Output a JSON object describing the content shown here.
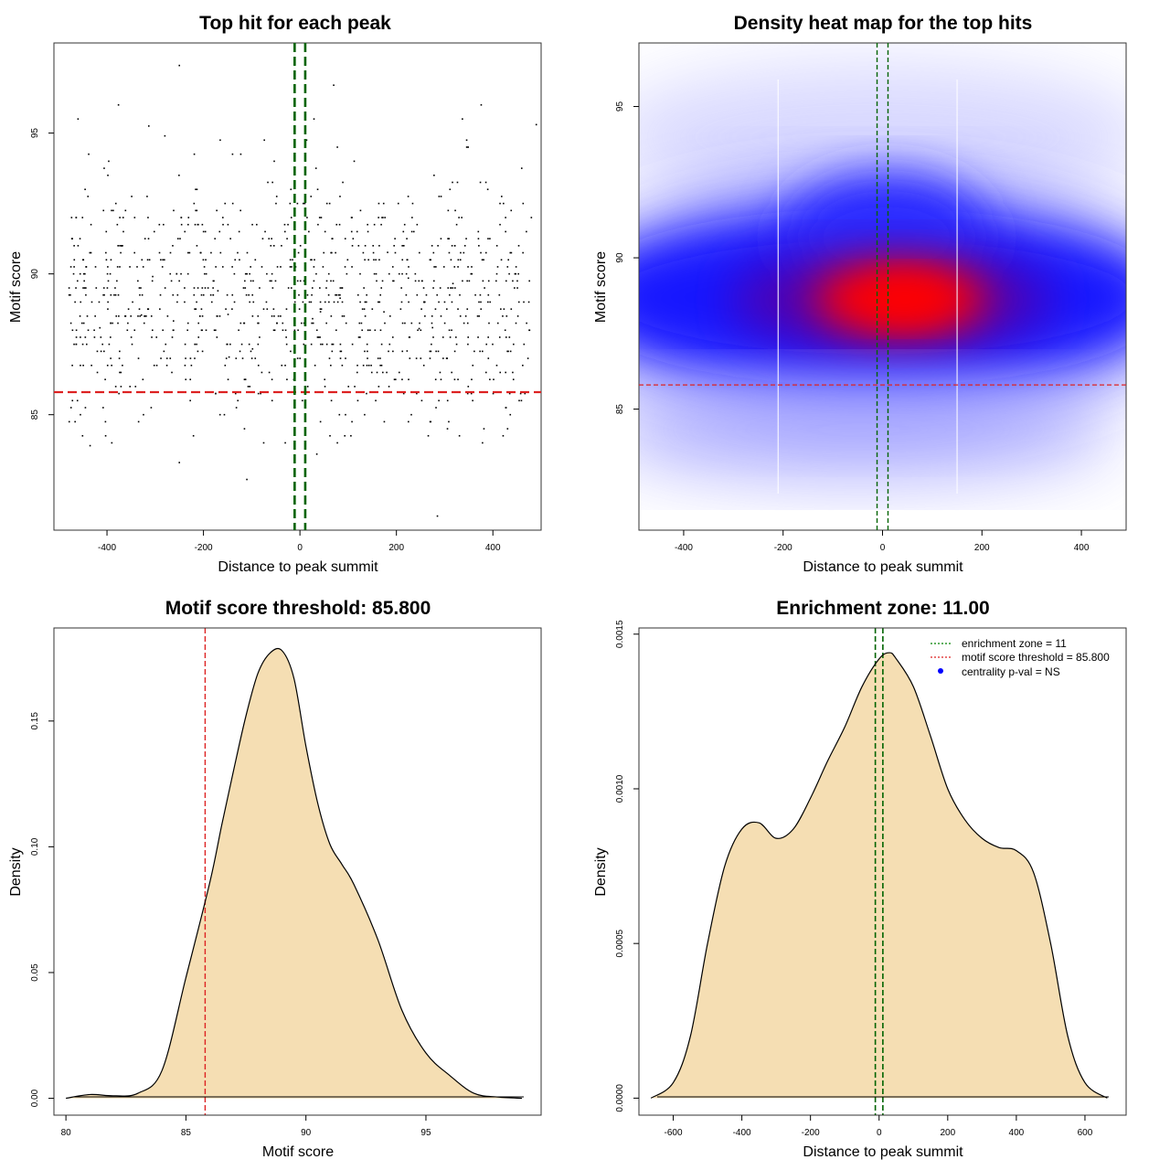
{
  "colors": {
    "threshold_red": "#dd2222",
    "zone_green": "#006400",
    "fill_wheat": "#f5deb3",
    "point": "#000000",
    "legend_blue": "#0000ff"
  },
  "chart_data": [
    {
      "type": "scatter",
      "title": "Top hit for each peak",
      "xlabel": "Distance to peak summit",
      "ylabel": "Motif score",
      "xlim": [
        -510,
        500
      ],
      "ylim": [
        80.9,
        98.2
      ],
      "xticks": [
        -400,
        -200,
        0,
        200,
        400
      ],
      "yticks": [
        85,
        90,
        95
      ],
      "xtick_labels": [
        "-400",
        "-200",
        "0",
        "200",
        "400"
      ],
      "ytick_labels": [
        "85",
        "90",
        "95"
      ],
      "hline": 85.8,
      "vlines": [
        -11,
        11
      ],
      "n_points": 1000,
      "x_range": [
        -480,
        480
      ],
      "y_center": 89.0,
      "y_spread": 2.3,
      "outliers": [
        {
          "x": -250,
          "y": 97.4
        },
        {
          "x": 70,
          "y": 96.7
        },
        {
          "x": -280,
          "y": 94.9
        },
        {
          "x": -115,
          "y": 84.5
        },
        {
          "x": -110,
          "y": 82.7
        },
        {
          "x": -250,
          "y": 83.3
        },
        {
          "x": 35,
          "y": 83.6
        },
        {
          "x": 285,
          "y": 81.4
        },
        {
          "x": 490,
          "y": 95.3
        },
        {
          "x": -435,
          "y": 83.9
        },
        {
          "x": -390,
          "y": 84.0
        },
        {
          "x": -460,
          "y": 95.5
        }
      ]
    },
    {
      "type": "heatmap",
      "title": "Density heat map for the top hits",
      "xlabel": "Distance to peak summit",
      "ylabel": "Motif score",
      "xlim": [
        -490,
        490
      ],
      "ylim": [
        81.0,
        97.1
      ],
      "xticks": [
        -400,
        -200,
        0,
        200,
        400
      ],
      "yticks": [
        85,
        90,
        95
      ],
      "xtick_labels": [
        "-400",
        "-200",
        "0",
        "200",
        "400"
      ],
      "ytick_labels": [
        "85",
        "90",
        "95"
      ],
      "hline": 85.8,
      "vlines": [
        -11,
        11
      ],
      "color_scale": [
        "#ffffff",
        "#0000ff",
        "#ff0000"
      ],
      "density_peak": {
        "x": 40,
        "y": 89.0
      },
      "white_gaps": [
        -210,
        150
      ]
    },
    {
      "type": "area",
      "title": "Motif score threshold: 85.800",
      "xlabel": "Motif score",
      "ylabel": "Density",
      "xlim": [
        79.5,
        99.8
      ],
      "ylim": [
        -0.0067,
        0.187
      ],
      "xticks": [
        80,
        85,
        90,
        95
      ],
      "yticks": [
        0,
        0.05,
        0.1,
        0.15
      ],
      "xtick_labels": [
        "80",
        "85",
        "90",
        "95"
      ],
      "ytick_labels": [
        "0.00",
        "0.05",
        "0.10",
        "0.15"
      ],
      "vline": 85.8,
      "x": [
        80.0,
        81.0,
        82.0,
        83.0,
        84.0,
        85.0,
        86.0,
        86.5,
        87.0,
        87.5,
        88.0,
        88.5,
        89.0,
        89.5,
        90.0,
        90.5,
        91.0,
        91.5,
        92.0,
        93.0,
        94.0,
        95.0,
        96.0,
        97.0,
        98.0,
        99.0
      ],
      "values": [
        0.0,
        0.0015,
        0.001,
        0.002,
        0.011,
        0.048,
        0.086,
        0.109,
        0.131,
        0.152,
        0.169,
        0.177,
        0.178,
        0.167,
        0.14,
        0.117,
        0.101,
        0.093,
        0.085,
        0.063,
        0.035,
        0.018,
        0.009,
        0.002,
        0.0005,
        0.0
      ]
    },
    {
      "type": "area",
      "title": "Enrichment zone: 11.00",
      "xlabel": "Distance to peak summit",
      "ylabel": "Density",
      "xlim": [
        -700,
        720
      ],
      "ylim": [
        -5.5e-05,
        0.00152
      ],
      "xticks": [
        -600,
        -400,
        -200,
        0,
        200,
        400,
        600
      ],
      "yticks": [
        0,
        0.0005,
        0.001,
        0.0015
      ],
      "xtick_labels": [
        "-600",
        "-400",
        "-200",
        "0",
        "200",
        "400",
        "600"
      ],
      "ytick_labels": [
        "0.0000",
        "0.0005",
        "0.0010",
        "0.0015"
      ],
      "vlines": [
        -11,
        11
      ],
      "x": [
        -665,
        -600,
        -550,
        -500,
        -450,
        -400,
        -350,
        -300,
        -250,
        -200,
        -150,
        -100,
        -50,
        0,
        30,
        50,
        100,
        150,
        200,
        250,
        300,
        350,
        400,
        450,
        500,
        550,
        600,
        665
      ],
      "values": [
        0.0,
        5e-05,
        0.0002,
        0.0005,
        0.00075,
        0.00087,
        0.00089,
        0.00084,
        0.00087,
        0.00097,
        0.00109,
        0.0012,
        0.00133,
        0.00142,
        0.00144,
        0.00142,
        0.00133,
        0.00117,
        0.001,
        0.0009,
        0.00084,
        0.00081,
        0.0008,
        0.00073,
        0.0005,
        0.0002,
        5e-05,
        0.0
      ],
      "legend": [
        {
          "label": "enrichment zone = 11",
          "style": "dotted-line",
          "color": "#008000"
        },
        {
          "label": "motif score threshold = 85.800",
          "style": "dotted-line",
          "color": "#dd2222"
        },
        {
          "label": "centrality p-val = NS",
          "style": "point",
          "color": "#0000ff"
        }
      ],
      "legend_position": "top-right"
    }
  ]
}
